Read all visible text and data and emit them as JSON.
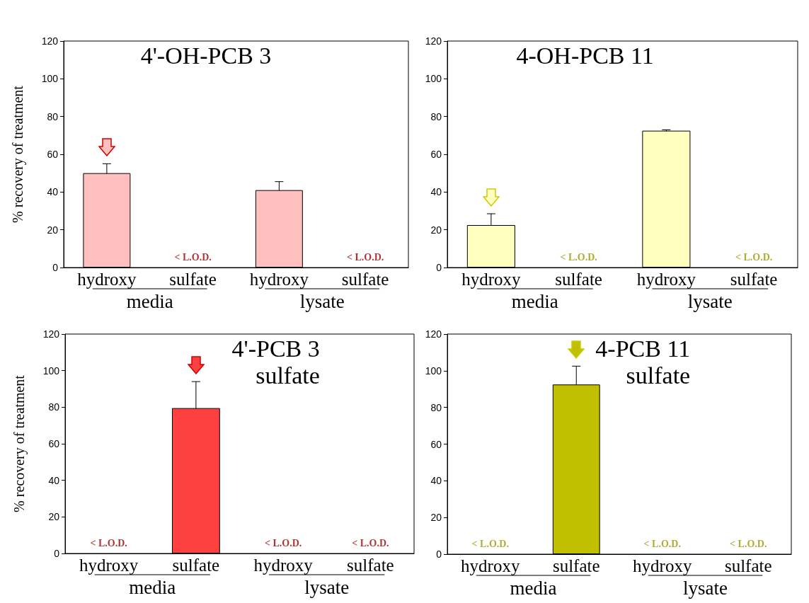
{
  "chart_data": [
    {
      "type": "bar",
      "title": "4'-OH-PCB 3",
      "ylabel": "% recovery of treatment",
      "categories": [
        "hydroxy",
        "sulfate",
        "hydroxy",
        "sulfate"
      ],
      "values": [
        50,
        null,
        41,
        null
      ],
      "errors": [
        5,
        null,
        4.5,
        null
      ],
      "value_labels": [
        null,
        "< L.O.D.",
        null,
        "< L.O.D."
      ],
      "color": "#ffbfbf",
      "ylim": [
        0,
        120
      ],
      "yticks": [
        0,
        20,
        40,
        60,
        80,
        100,
        120
      ],
      "grid": false,
      "annotations": [
        "media",
        "lysate"
      ]
    },
    {
      "type": "bar",
      "title": "4-OH-PCB 11",
      "categories": [
        "hydroxy",
        "sulfate",
        "hydroxy",
        "sulfate"
      ],
      "values": [
        22.5,
        null,
        72.5,
        null
      ],
      "errors": [
        6,
        null,
        0.5,
        null
      ],
      "value_labels": [
        null,
        "< L.O.D.",
        null,
        "< L.O.D."
      ],
      "color": "#ffffc0",
      "ylim": [
        0,
        120
      ],
      "yticks": [
        0,
        20,
        40,
        60,
        80,
        100,
        120
      ],
      "grid": false,
      "annotations": [
        "media",
        "lysate"
      ]
    },
    {
      "type": "bar",
      "title": "4'-PCB 3",
      "subtitle": "sulfate",
      "ylabel": "% recovery of treatment",
      "categories": [
        "hydroxy",
        "sulfate",
        "hydroxy",
        "sulfate"
      ],
      "values": [
        null,
        79.5,
        null,
        null
      ],
      "errors": [
        null,
        14.5,
        null,
        null
      ],
      "value_labels": [
        "< L.O.D.",
        null,
        "< L.O.D.",
        "< L.O.D."
      ],
      "color": "#ff4040",
      "ylim": [
        0,
        120
      ],
      "yticks": [
        0,
        20,
        40,
        60,
        80,
        100,
        120
      ],
      "grid": false,
      "annotations": [
        "media",
        "lysate"
      ]
    },
    {
      "type": "bar",
      "title": "4-PCB 11",
      "subtitle": "sulfate",
      "categories": [
        "hydroxy",
        "sulfate",
        "hydroxy",
        "sulfate"
      ],
      "values": [
        null,
        92.5,
        null,
        null
      ],
      "errors": [
        null,
        10,
        null,
        null
      ],
      "value_labels": [
        "< L.O.D.",
        null,
        "< L.O.D.",
        "< L.O.D."
      ],
      "color": "#c0c000",
      "ylim": [
        0,
        120
      ],
      "yticks": [
        0,
        20,
        40,
        60,
        80,
        100,
        120
      ],
      "grid": false,
      "annotations": [
        "media",
        "lysate"
      ]
    }
  ]
}
